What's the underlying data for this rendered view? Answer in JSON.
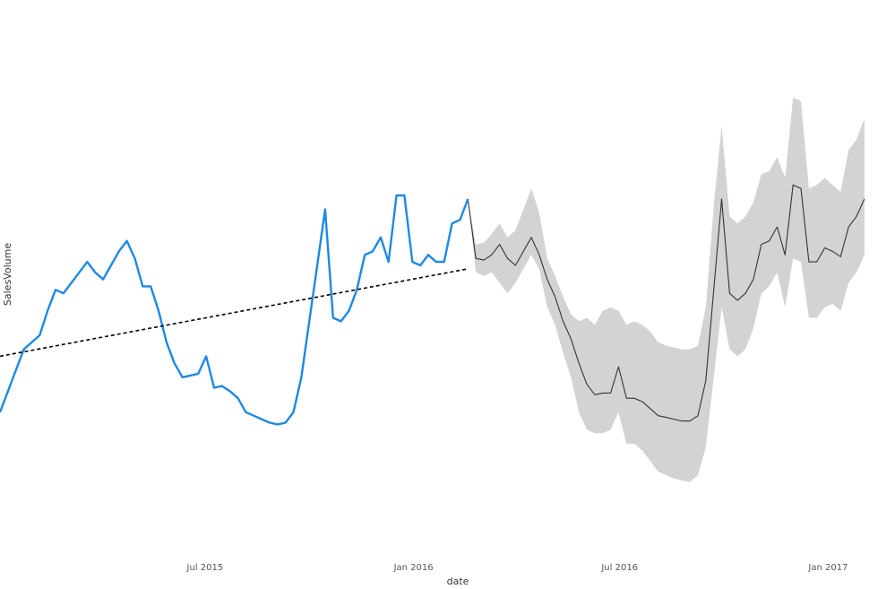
{
  "chart_data": {
    "type": "line",
    "xlabel": "date",
    "ylabel": "SalesVolume",
    "x_axis": {
      "type": "date",
      "range": [
        "2015-01-01",
        "2017-03-01"
      ],
      "ticks": [
        {
          "date": "2015-07-01",
          "label": "Jul 2015"
        },
        {
          "date": "2016-01-01",
          "label": "Jan 2016"
        },
        {
          "date": "2016-07-01",
          "label": "Jul 2016"
        },
        {
          "date": "2017-01-01",
          "label": "Jan 2017"
        }
      ]
    },
    "y_axis": {
      "range": [
        0,
        100
      ],
      "tick_labels_shown": false
    },
    "grid": false,
    "colors": {
      "actual": "#1e88e5",
      "forecast": "#333333",
      "band": "#d3d3d3",
      "trend": "#000000"
    },
    "series": [
      {
        "role": "actual",
        "points": [
          [
            "2015-01-01",
            18
          ],
          [
            "2015-01-08",
            24
          ],
          [
            "2015-01-15",
            30
          ],
          [
            "2015-01-22",
            36
          ],
          [
            "2015-01-29",
            38
          ],
          [
            "2015-02-05",
            40
          ],
          [
            "2015-02-12",
            47
          ],
          [
            "2015-02-19",
            53
          ],
          [
            "2015-02-26",
            52
          ],
          [
            "2015-03-05",
            55
          ],
          [
            "2015-03-12",
            58
          ],
          [
            "2015-03-19",
            61
          ],
          [
            "2015-03-26",
            58
          ],
          [
            "2015-04-02",
            56
          ],
          [
            "2015-04-09",
            60
          ],
          [
            "2015-04-16",
            64
          ],
          [
            "2015-04-23",
            67
          ],
          [
            "2015-04-30",
            62
          ],
          [
            "2015-05-07",
            54
          ],
          [
            "2015-05-14",
            54
          ],
          [
            "2015-05-21",
            47
          ],
          [
            "2015-05-28",
            38
          ],
          [
            "2015-06-04",
            32
          ],
          [
            "2015-06-11",
            28
          ],
          [
            "2015-06-18",
            28.5
          ],
          [
            "2015-06-25",
            29
          ],
          [
            "2015-07-02",
            34
          ],
          [
            "2015-07-09",
            25
          ],
          [
            "2015-07-16",
            25.5
          ],
          [
            "2015-07-23",
            24
          ],
          [
            "2015-07-30",
            22
          ],
          [
            "2015-08-06",
            18
          ],
          [
            "2015-08-13",
            17
          ],
          [
            "2015-08-20",
            16
          ],
          [
            "2015-08-27",
            15
          ],
          [
            "2015-09-03",
            14.5
          ],
          [
            "2015-09-10",
            15
          ],
          [
            "2015-09-17",
            18
          ],
          [
            "2015-09-24",
            28
          ],
          [
            "2015-10-01",
            44
          ],
          [
            "2015-10-08",
            60
          ],
          [
            "2015-10-15",
            76
          ],
          [
            "2015-10-22",
            45
          ],
          [
            "2015-10-29",
            44
          ],
          [
            "2015-11-05",
            47
          ],
          [
            "2015-11-12",
            53
          ],
          [
            "2015-11-19",
            63
          ],
          [
            "2015-11-26",
            64
          ],
          [
            "2015-12-03",
            68
          ],
          [
            "2015-12-10",
            61
          ],
          [
            "2015-12-17",
            80
          ],
          [
            "2015-12-24",
            80
          ],
          [
            "2015-12-31",
            61
          ],
          [
            "2016-01-07",
            60
          ],
          [
            "2016-01-14",
            63
          ],
          [
            "2016-01-21",
            61
          ],
          [
            "2016-01-28",
            61
          ],
          [
            "2016-02-04",
            72
          ],
          [
            "2016-02-11",
            73
          ],
          [
            "2016-02-18",
            79
          ]
        ]
      },
      {
        "role": "trend",
        "points": [
          [
            "2015-01-01",
            34
          ],
          [
            "2016-02-18",
            59
          ]
        ]
      },
      {
        "role": "forecast",
        "points": [
          [
            "2016-02-18",
            79
          ],
          [
            "2016-02-25",
            62
          ],
          [
            "2016-03-03",
            61.5
          ],
          [
            "2016-03-10",
            63
          ],
          [
            "2016-03-17",
            66
          ],
          [
            "2016-03-24",
            62
          ],
          [
            "2016-03-31",
            60
          ],
          [
            "2016-04-07",
            64
          ],
          [
            "2016-04-14",
            68
          ],
          [
            "2016-04-21",
            63
          ],
          [
            "2016-04-28",
            56
          ],
          [
            "2016-05-05",
            51
          ],
          [
            "2016-05-12",
            44
          ],
          [
            "2016-05-19",
            39
          ],
          [
            "2016-05-26",
            32
          ],
          [
            "2016-06-02",
            26
          ],
          [
            "2016-06-09",
            23
          ],
          [
            "2016-06-16",
            23.5
          ],
          [
            "2016-06-23",
            23.5
          ],
          [
            "2016-06-30",
            31
          ],
          [
            "2016-07-07",
            22
          ],
          [
            "2016-07-14",
            22
          ],
          [
            "2016-07-21",
            21
          ],
          [
            "2016-07-28",
            19
          ],
          [
            "2016-08-04",
            17
          ],
          [
            "2016-08-11",
            16.5
          ],
          [
            "2016-08-18",
            16
          ],
          [
            "2016-08-25",
            15.5
          ],
          [
            "2016-09-01",
            15.5
          ],
          [
            "2016-09-08",
            17
          ],
          [
            "2016-09-15",
            27
          ],
          [
            "2016-09-22",
            53
          ],
          [
            "2016-09-29",
            79
          ],
          [
            "2016-10-06",
            52
          ],
          [
            "2016-10-13",
            50
          ],
          [
            "2016-10-20",
            52
          ],
          [
            "2016-10-27",
            56
          ],
          [
            "2016-11-03",
            66
          ],
          [
            "2016-11-10",
            67
          ],
          [
            "2016-11-17",
            71
          ],
          [
            "2016-11-24",
            63
          ],
          [
            "2016-12-01",
            83
          ],
          [
            "2016-12-08",
            82
          ],
          [
            "2016-12-15",
            61
          ],
          [
            "2016-12-22",
            61
          ],
          [
            "2016-12-29",
            65
          ],
          [
            "2017-01-05",
            64
          ],
          [
            "2017-01-12",
            62.5
          ],
          [
            "2017-01-19",
            71
          ],
          [
            "2017-01-26",
            74
          ],
          [
            "2017-02-02",
            79
          ]
        ]
      },
      {
        "role": "band",
        "points": [
          [
            "2016-02-18",
            79,
            79
          ],
          [
            "2016-02-25",
            58,
            66
          ],
          [
            "2016-03-03",
            57,
            66.5
          ],
          [
            "2016-03-10",
            58,
            69
          ],
          [
            "2016-03-17",
            55,
            72
          ],
          [
            "2016-03-24",
            52,
            68
          ],
          [
            "2016-03-31",
            55,
            70
          ],
          [
            "2016-04-07",
            59,
            76
          ],
          [
            "2016-04-14",
            63,
            82
          ],
          [
            "2016-04-21",
            59,
            75
          ],
          [
            "2016-04-28",
            48,
            62
          ],
          [
            "2016-05-05",
            43,
            57
          ],
          [
            "2016-05-12",
            35,
            51
          ],
          [
            "2016-05-19",
            28,
            46
          ],
          [
            "2016-05-26",
            18,
            44
          ],
          [
            "2016-06-02",
            13,
            45
          ],
          [
            "2016-06-09",
            12,
            43
          ],
          [
            "2016-06-16",
            12,
            47
          ],
          [
            "2016-06-23",
            13,
            48
          ],
          [
            "2016-06-30",
            18,
            47
          ],
          [
            "2016-07-07",
            9,
            43
          ],
          [
            "2016-07-14",
            9,
            44
          ],
          [
            "2016-07-21",
            7,
            43
          ],
          [
            "2016-07-28",
            4,
            41
          ],
          [
            "2016-08-04",
            1,
            38
          ],
          [
            "2016-08-11",
            0,
            37
          ],
          [
            "2016-08-18",
            -1,
            36.5
          ],
          [
            "2016-08-25",
            -1.5,
            36
          ],
          [
            "2016-09-01",
            -2,
            36
          ],
          [
            "2016-09-08",
            0,
            37
          ],
          [
            "2016-09-15",
            8,
            48
          ],
          [
            "2016-09-22",
            28,
            77
          ],
          [
            "2016-09-29",
            48,
            100
          ],
          [
            "2016-10-06",
            36,
            74
          ],
          [
            "2016-10-13",
            34,
            72
          ],
          [
            "2016-10-20",
            36,
            74
          ],
          [
            "2016-10-27",
            42,
            78
          ],
          [
            "2016-11-03",
            52,
            86
          ],
          [
            "2016-11-10",
            54,
            87
          ],
          [
            "2016-11-17",
            58,
            91
          ],
          [
            "2016-11-24",
            48,
            85
          ],
          [
            "2016-12-01",
            62,
            108
          ],
          [
            "2016-12-08",
            61,
            107
          ],
          [
            "2016-12-15",
            45,
            82
          ],
          [
            "2016-12-22",
            45,
            83
          ],
          [
            "2016-12-29",
            48,
            85
          ],
          [
            "2017-01-05",
            49,
            83
          ],
          [
            "2017-01-12",
            47,
            81
          ],
          [
            "2017-01-19",
            55,
            93
          ],
          [
            "2017-01-26",
            58,
            96
          ],
          [
            "2017-02-02",
            63,
            102
          ]
        ]
      }
    ]
  }
}
